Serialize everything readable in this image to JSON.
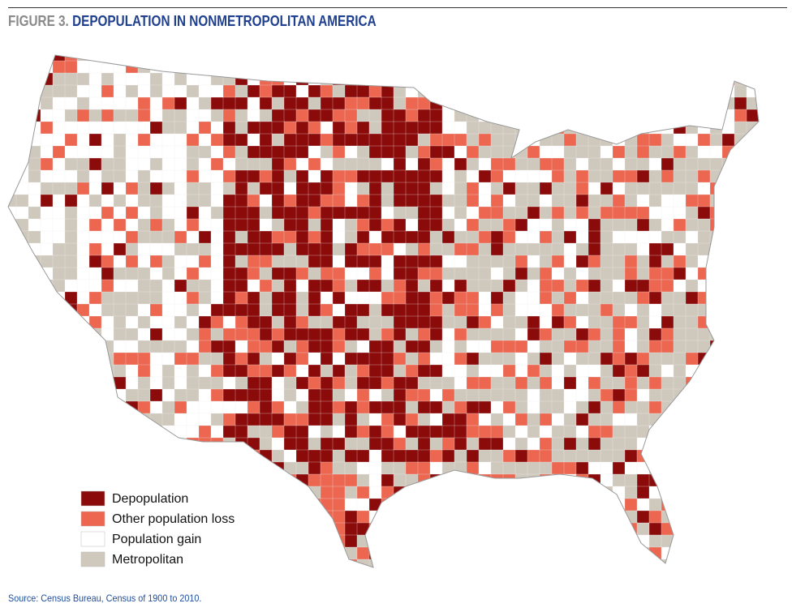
{
  "header": {
    "label": "FIGURE 3.",
    "title": "DEPOPULATION IN NONMETROPOLITAN AMERICA"
  },
  "legend": [
    {
      "label": "Depopulation",
      "color": "#8b0a0a"
    },
    {
      "label": "Other population loss",
      "color": "#ec6650"
    },
    {
      "label": "Population gain",
      "color": "#ffffff"
    },
    {
      "label": "Metropolitan",
      "color": "#cfc9bd"
    }
  ],
  "source": "Source: Census Bureau, Census of 1900 to 2010."
}
